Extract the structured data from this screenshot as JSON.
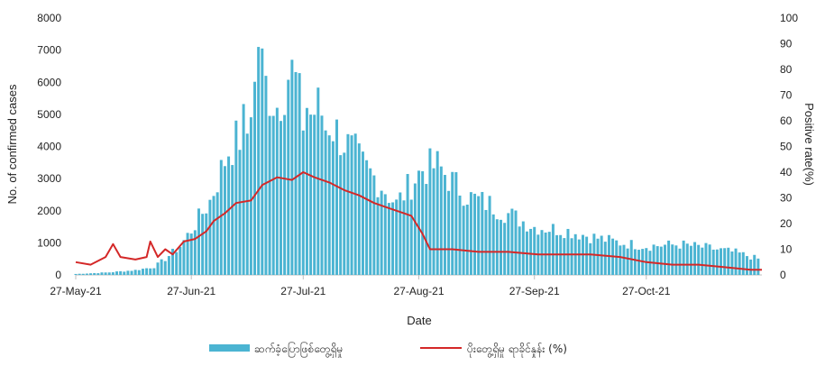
{
  "chart_data": {
    "type": "bar+line",
    "xlabel": "Date",
    "ylabel_left": "No. of confirmed cases",
    "ylabel_right": "Positive rate(%)",
    "ylim_left": [
      0,
      8000
    ],
    "ylim_right": [
      0,
      100
    ],
    "yticks_left": [
      "0",
      "1000",
      "2000",
      "3000",
      "4000",
      "5000",
      "6000",
      "7000",
      "8000"
    ],
    "yticks_right": [
      "0",
      "10",
      "20",
      "30",
      "40",
      "50",
      "60",
      "70",
      "80",
      "90",
      "100"
    ],
    "x_tick_labels": [
      "27-May-21",
      "27-Jun-21",
      "27-Jul-21",
      "27-Aug-21",
      "27-Sep-21",
      "27-Oct-21"
    ],
    "x_range": [
      "2021-05-27",
      "2021-11-27"
    ],
    "series": [
      {
        "name": "ဆက်ခံ့ပြောဖြစ်တွေ့ရှိမှု",
        "kind": "bar",
        "color": "#4bb4d2",
        "keypoints": [
          [
            "2021-05-27",
            30
          ],
          [
            "2021-06-05",
            80
          ],
          [
            "2021-06-12",
            150
          ],
          [
            "2021-06-17",
            250
          ],
          [
            "2021-06-20",
            500
          ],
          [
            "2021-06-24",
            900
          ],
          [
            "2021-06-27",
            1400
          ],
          [
            "2021-07-02",
            2300
          ],
          [
            "2021-07-07",
            3900
          ],
          [
            "2021-07-10",
            4300
          ],
          [
            "2021-07-14",
            5800
          ],
          [
            "2021-07-15",
            7000
          ],
          [
            "2021-07-17",
            5900
          ],
          [
            "2021-07-20",
            5300
          ],
          [
            "2021-07-24",
            6600
          ],
          [
            "2021-07-27",
            4800
          ],
          [
            "2021-07-31",
            5200
          ],
          [
            "2021-08-04",
            4600
          ],
          [
            "2021-08-08",
            4000
          ],
          [
            "2021-08-12",
            3400
          ],
          [
            "2021-08-17",
            2800
          ],
          [
            "2021-08-21",
            2200
          ],
          [
            "2021-08-24",
            2700
          ],
          [
            "2021-08-28",
            3300
          ],
          [
            "2021-09-01",
            3400
          ],
          [
            "2021-09-05",
            2900
          ],
          [
            "2021-09-10",
            2400
          ],
          [
            "2021-09-15",
            2200
          ],
          [
            "2021-09-20",
            1900
          ],
          [
            "2021-09-27",
            1500
          ],
          [
            "2021-10-05",
            1400
          ],
          [
            "2021-10-12",
            1200
          ],
          [
            "2021-10-20",
            1000
          ],
          [
            "2021-10-27",
            900
          ],
          [
            "2021-11-05",
            950
          ],
          [
            "2021-11-12",
            850
          ],
          [
            "2021-11-20",
            700
          ],
          [
            "2021-11-26",
            500
          ]
        ],
        "peaks": [
          [
            "2021-07-15",
            7100
          ],
          [
            "2021-07-24",
            6700
          ],
          [
            "2021-07-17",
            6200
          ],
          [
            "2021-08-02",
            4500
          ],
          [
            "2021-08-10",
            4400
          ],
          [
            "2021-07-12",
            4400
          ],
          [
            "2021-07-28",
            5200
          ]
        ]
      },
      {
        "name": "ပိုးတွေ့ရှိမှု ရာခိုင်နှုန်း (%)",
        "kind": "line",
        "axis": "right",
        "color": "#d42828",
        "points": [
          [
            "2021-05-27",
            5
          ],
          [
            "2021-05-31",
            4
          ],
          [
            "2021-06-04",
            7
          ],
          [
            "2021-06-06",
            12
          ],
          [
            "2021-06-08",
            7
          ],
          [
            "2021-06-12",
            6
          ],
          [
            "2021-06-15",
            7
          ],
          [
            "2021-06-16",
            13
          ],
          [
            "2021-06-18",
            7
          ],
          [
            "2021-06-20",
            10
          ],
          [
            "2021-06-22",
            8
          ],
          [
            "2021-06-25",
            13
          ],
          [
            "2021-06-28",
            14
          ],
          [
            "2021-07-01",
            17
          ],
          [
            "2021-07-03",
            21
          ],
          [
            "2021-07-06",
            24
          ],
          [
            "2021-07-09",
            28
          ],
          [
            "2021-07-13",
            29
          ],
          [
            "2021-07-16",
            35
          ],
          [
            "2021-07-20",
            38
          ],
          [
            "2021-07-24",
            37
          ],
          [
            "2021-07-27",
            40
          ],
          [
            "2021-07-30",
            38
          ],
          [
            "2021-08-03",
            36
          ],
          [
            "2021-08-07",
            33
          ],
          [
            "2021-08-11",
            31
          ],
          [
            "2021-08-15",
            28
          ],
          [
            "2021-08-19",
            26
          ],
          [
            "2021-08-23",
            24
          ],
          [
            "2021-08-25",
            23
          ],
          [
            "2021-08-28",
            16
          ],
          [
            "2021-08-30",
            10
          ],
          [
            "2021-09-05",
            10
          ],
          [
            "2021-09-12",
            9
          ],
          [
            "2021-09-20",
            9
          ],
          [
            "2021-09-28",
            8
          ],
          [
            "2021-10-05",
            8
          ],
          [
            "2021-10-12",
            8
          ],
          [
            "2021-10-20",
            7
          ],
          [
            "2021-10-27",
            5
          ],
          [
            "2021-11-03",
            4
          ],
          [
            "2021-11-10",
            4
          ],
          [
            "2021-11-17",
            3
          ],
          [
            "2021-11-24",
            2
          ],
          [
            "2021-11-27",
            2
          ]
        ]
      }
    ],
    "legend": {
      "position": "bottom"
    }
  }
}
